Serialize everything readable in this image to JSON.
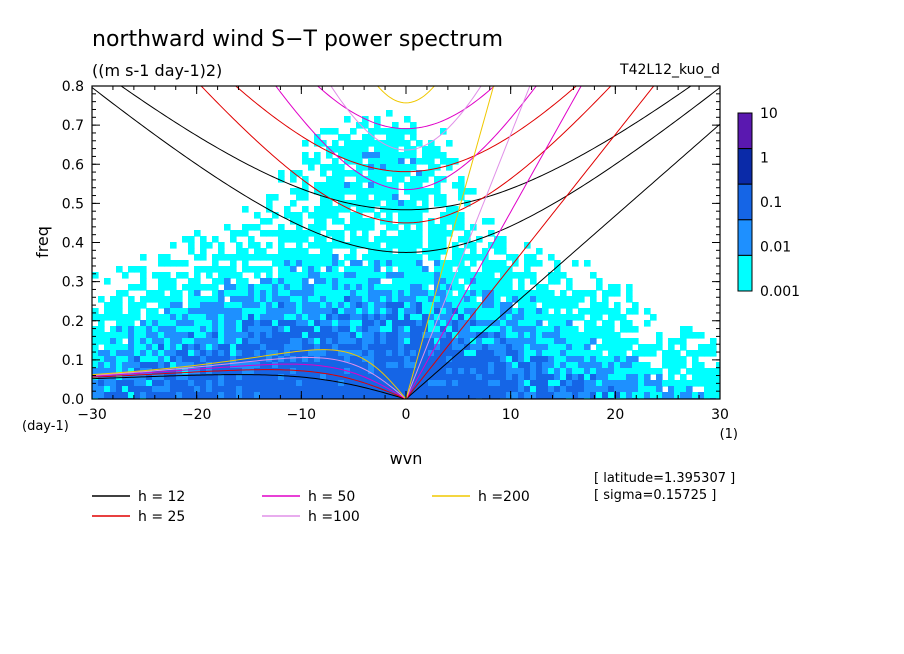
{
  "chart_data": {
    "type": "heatmap",
    "title": "northward wind S−T power spectrum",
    "units": "((m s-1 day-1)2)",
    "run_label": "T42L12_kuo_d",
    "xlabel": "wvn",
    "x_unit": "(1)",
    "ylabel": "freq",
    "y_unit": "(day-1)",
    "xlim": [
      -30,
      30
    ],
    "ylim": [
      0,
      0.8
    ],
    "x_ticks": [
      "−30",
      "−20",
      "−10",
      "0",
      "10",
      "20",
      "30"
    ],
    "x_tick_values": [
      -30,
      -20,
      -10,
      0,
      10,
      20,
      30
    ],
    "y_ticks": [
      "0.0",
      "0.1",
      "0.2",
      "0.3",
      "0.4",
      "0.5",
      "0.6",
      "0.7",
      "0.8"
    ],
    "y_tick_values": [
      0,
      0.1,
      0.2,
      0.3,
      0.4,
      0.5,
      0.6,
      0.7,
      0.8
    ],
    "colorbar": {
      "labels": [
        "10",
        "1",
        "0.1",
        "0.01",
        "0.001"
      ],
      "colors": [
        "#5a18b0",
        "#0a2aa8",
        "#1565e6",
        "#1e90ff",
        "#00ffff"
      ]
    },
    "shading_levels": [
      {
        "min": 0.001,
        "max": 0.01,
        "color": "#00ffff"
      },
      {
        "min": 0.01,
        "max": 0.1,
        "color": "#1e90ff"
      },
      {
        "min": 0.1,
        "max": 1,
        "color": "#1565e6"
      }
    ],
    "dispersion_curves": [
      {
        "label": "h = 12",
        "h": 12,
        "color": "#000000"
      },
      {
        "label": "h = 25",
        "h": 25,
        "color": "#e00000"
      },
      {
        "label": "h = 50",
        "h": 50,
        "color": "#e000c8"
      },
      {
        "label": "h =100",
        "h": 100,
        "color": "#e090e8"
      },
      {
        "label": "h =200",
        "h": 200,
        "color": "#f0c800"
      }
    ],
    "info": [
      "[ latitude=1.395307 ]",
      "[ sigma=0.15725 ]"
    ]
  }
}
